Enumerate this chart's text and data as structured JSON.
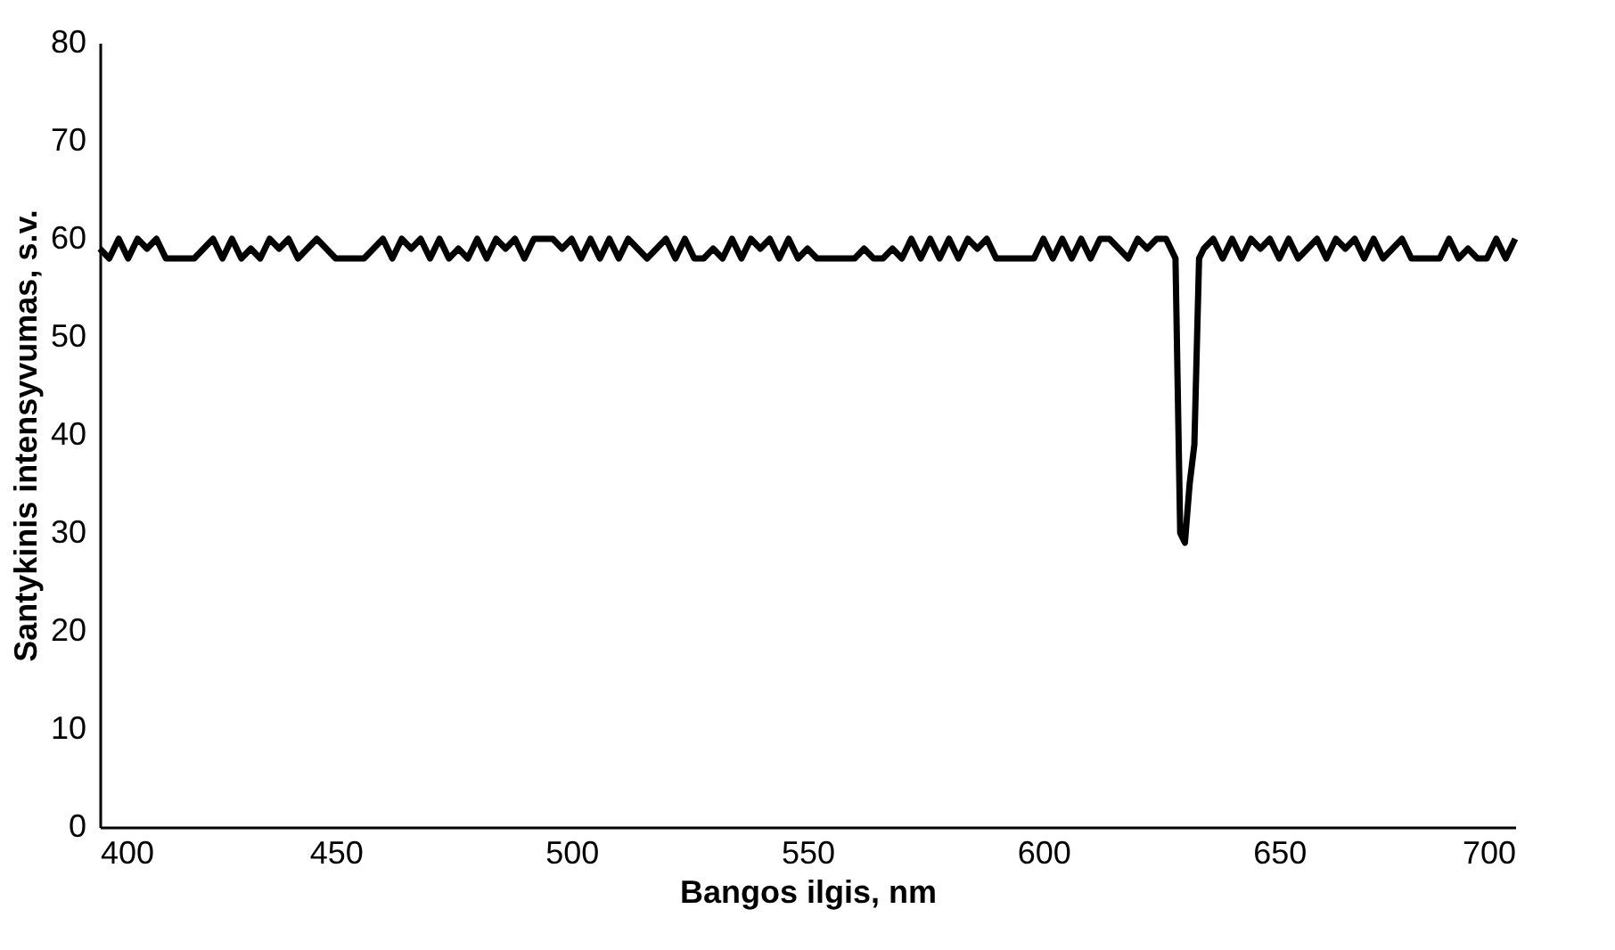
{
  "chart_data": {
    "type": "line",
    "xlabel": "Bangos ilgis, nm",
    "ylabel": "Santykinis intensyvumas, s.v.",
    "xlim": [
      400,
      700
    ],
    "xticks": [
      400,
      450,
      500,
      550,
      600,
      650,
      700
    ],
    "ylim": [
      0,
      80
    ],
    "yticks": [
      0,
      10,
      20,
      30,
      40,
      50,
      60,
      70,
      80
    ],
    "grid": false,
    "marker": "none",
    "line_style": "solid",
    "series": [
      {
        "color": "#000000",
        "x": [
          400,
          402,
          404,
          406,
          408,
          410,
          412,
          414,
          416,
          418,
          420,
          422,
          424,
          426,
          428,
          430,
          432,
          434,
          436,
          438,
          440,
          442,
          444,
          446,
          448,
          450,
          452,
          454,
          456,
          458,
          460,
          462,
          464,
          466,
          468,
          470,
          472,
          474,
          476,
          478,
          480,
          482,
          484,
          486,
          488,
          490,
          492,
          494,
          496,
          498,
          500,
          502,
          504,
          506,
          508,
          510,
          512,
          514,
          516,
          518,
          520,
          522,
          524,
          526,
          528,
          530,
          532,
          534,
          536,
          538,
          540,
          542,
          544,
          546,
          548,
          550,
          552,
          554,
          556,
          558,
          560,
          562,
          564,
          566,
          568,
          570,
          572,
          574,
          576,
          578,
          580,
          582,
          584,
          586,
          588,
          590,
          592,
          594,
          596,
          598,
          600,
          602,
          604,
          606,
          608,
          610,
          612,
          614,
          616,
          618,
          620,
          622,
          624,
          626,
          627,
          628,
          629,
          630,
          631,
          632,
          633,
          634,
          636,
          638,
          640,
          642,
          644,
          646,
          648,
          650,
          652,
          654,
          656,
          658,
          660,
          662,
          664,
          666,
          668,
          670,
          672,
          674,
          676,
          678,
          680,
          682,
          684,
          686,
          688,
          690,
          692,
          694,
          696,
          698,
          700
        ],
        "values": [
          59,
          58,
          60,
          58,
          60,
          59,
          60,
          58,
          58,
          58,
          58,
          59,
          60,
          58,
          60,
          58,
          59,
          58,
          60,
          59,
          60,
          58,
          59,
          60,
          59,
          58,
          58,
          58,
          58,
          59,
          60,
          58,
          60,
          59,
          60,
          58,
          60,
          58,
          59,
          58,
          60,
          58,
          60,
          59,
          60,
          58,
          60,
          60,
          60,
          59,
          60,
          58,
          60,
          58,
          60,
          58,
          60,
          59,
          58,
          59,
          60,
          58,
          60,
          58,
          58,
          59,
          58,
          60,
          58,
          60,
          59,
          60,
          58,
          60,
          58,
          59,
          58,
          58,
          58,
          58,
          58,
          59,
          58,
          58,
          59,
          58,
          60,
          58,
          60,
          58,
          60,
          58,
          60,
          59,
          60,
          58,
          58,
          58,
          58,
          58,
          60,
          58,
          60,
          58,
          60,
          58,
          60,
          60,
          59,
          58,
          60,
          59,
          60,
          60,
          59,
          58,
          30,
          29,
          35,
          39,
          58,
          59,
          60,
          58,
          60,
          58,
          60,
          59,
          60,
          58,
          60,
          58,
          59,
          60,
          58,
          60,
          59,
          60,
          58,
          60,
          58,
          59,
          60,
          58,
          58,
          58,
          58,
          60,
          58,
          59,
          58,
          58,
          60,
          58,
          60
        ]
      }
    ]
  }
}
